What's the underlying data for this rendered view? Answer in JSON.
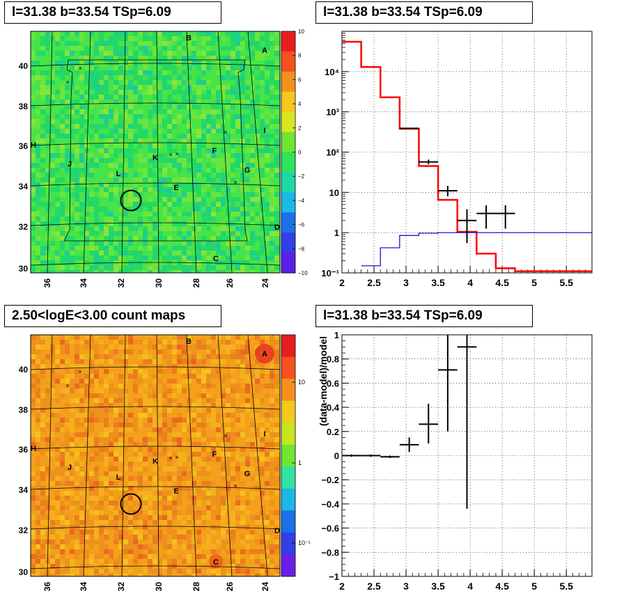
{
  "panels": {
    "tl_title": "l=31.38 b=33.54 TSp=6.09",
    "tr_title": "l=31.38 b=33.54 TSp=6.09",
    "bl_title": "2.50<logE<3.00 count maps",
    "br_title": "l=31.38 b=33.54 TSp=6.09"
  },
  "maps": {
    "x_ticks": [
      "36",
      "34",
      "32",
      "30",
      "28",
      "26",
      "24"
    ],
    "y_ticks": [
      "40",
      "38",
      "36",
      "34",
      "32",
      "30"
    ],
    "source_labels": [
      "A",
      "B",
      "C",
      "D",
      "E",
      "F",
      "G",
      "H",
      "I",
      "J",
      "K",
      "L"
    ],
    "residual_colorbar": [
      "10",
      "8",
      "6",
      "4",
      "2",
      "0",
      "−2",
      "−4",
      "−6",
      "−8",
      "−10"
    ],
    "count_colorbar": [
      "10",
      "1",
      "10⁻¹"
    ],
    "colors": {
      "residual_bg": "#33e04a",
      "count_bg": "#f09a1c"
    }
  },
  "chart_data": [
    {
      "type": "line",
      "title": "l=31.38 b=33.54 TSp=6.09",
      "xlabel": "",
      "ylabel": "",
      "xlim": [
        2,
        5.9
      ],
      "ylim": [
        0.1,
        100000
      ],
      "yscale": "log",
      "x_ticks": [
        "2",
        "2.5",
        "3",
        "3.5",
        "4",
        "4.5",
        "5",
        "5.5"
      ],
      "y_ticks": [
        "10⁻¹",
        "1",
        "10",
        "10²",
        "10³",
        "10⁴"
      ],
      "grid": true,
      "series": [
        {
          "color": "#ff0000",
          "style": "step",
          "bins": [
            [
              2,
              2.3
            ],
            [
              2.3,
              2.6
            ],
            [
              2.6,
              2.9
            ],
            [
              2.9,
              3.2
            ],
            [
              3.2,
              3.5
            ],
            [
              3.5,
              3.8
            ],
            [
              3.8,
              4.1
            ],
            [
              4.1,
              4.4
            ],
            [
              4.4,
              4.7
            ],
            [
              4.7,
              5.9
            ]
          ],
          "values": [
            55000,
            13000,
            2300,
            380,
            45,
            6.5,
            1.05,
            0.3,
            0.13,
            0.11
          ]
        },
        {
          "color": "#0000cc",
          "style": "step",
          "bins": [
            [
              2.3,
              2.6
            ],
            [
              2.6,
              2.9
            ],
            [
              2.9,
              3.2
            ],
            [
              3.2,
              3.5
            ],
            [
              3.5,
              3.8
            ],
            [
              3.8,
              5.9
            ]
          ],
          "values": [
            0.15,
            0.42,
            0.85,
            0.97,
            1.0,
            1.0
          ]
        },
        {
          "color": "#000000",
          "style": "errorbar",
          "points": [
            {
              "x": 3.05,
              "y": 390,
              "xerr": 0.15,
              "ylo": 390,
              "yhi": 390
            },
            {
              "x": 3.35,
              "y": 57,
              "xerr": 0.15,
              "ylo": 50,
              "yhi": 65
            },
            {
              "x": 3.65,
              "y": 11,
              "xerr": 0.15,
              "ylo": 8,
              "yhi": 14.5
            },
            {
              "x": 3.95,
              "y": 2,
              "xerr": 0.15,
              "ylo": 0.55,
              "yhi": 3.8
            },
            {
              "x": 4.25,
              "y": 3,
              "xerr": 0.15,
              "ylo": 1.25,
              "yhi": 4.8
            },
            {
              "x": 4.55,
              "y": 3,
              "xerr": 0.15,
              "ylo": 1.25,
              "yhi": 4.8
            }
          ]
        }
      ]
    },
    {
      "type": "scatter",
      "title": "l=31.38 b=33.54 TSp=6.09",
      "xlabel": "",
      "ylabel": "(data-model)/model",
      "xlim": [
        2,
        5.9
      ],
      "ylim": [
        -1,
        1
      ],
      "x_ticks": [
        "2",
        "2.5",
        "3",
        "3.5",
        "4",
        "4.5",
        "5",
        "5.5"
      ],
      "y_ticks": [
        "−1",
        "−0.8",
        "−0.6",
        "−0.4",
        "−0.2",
        "0",
        "0.2",
        "0.4",
        "0.6",
        "0.8",
        "1"
      ],
      "grid": true,
      "series": [
        {
          "color": "#000000",
          "style": "errorbar",
          "points": [
            {
              "x": 2.15,
              "y": 0,
              "xerr": 0.15,
              "ylo": -0.01,
              "yhi": 0.01
            },
            {
              "x": 2.45,
              "y": 0,
              "xerr": 0.15,
              "ylo": -0.01,
              "yhi": 0.01
            },
            {
              "x": 2.75,
              "y": -0.01,
              "xerr": 0.15,
              "ylo": -0.02,
              "yhi": 0.0
            },
            {
              "x": 3.05,
              "y": 0.09,
              "xerr": 0.15,
              "ylo": 0.03,
              "yhi": 0.15
            },
            {
              "x": 3.35,
              "y": 0.26,
              "xerr": 0.15,
              "ylo": 0.1,
              "yhi": 0.43
            },
            {
              "x": 3.65,
              "y": 0.71,
              "xerr": 0.15,
              "ylo": 0.2,
              "yhi": 1.0
            },
            {
              "x": 3.95,
              "y": 0.9,
              "xerr": 0.15,
              "ylo": -0.44,
              "yhi": 1.0
            }
          ]
        }
      ]
    }
  ]
}
